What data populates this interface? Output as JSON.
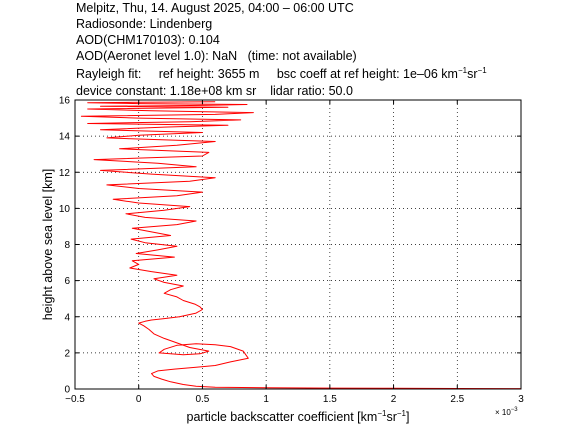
{
  "header": {
    "line1": "Melpitz, Thu, 14. August 2025, 04:00 – 06:00 UTC",
    "line2": "Radiosonde: Lindenberg",
    "line3": "AOD(CHM170103): 0.104",
    "line4_a": "AOD(Aeronet level 1.0): NaN",
    "line4_b": "(time: not available)",
    "rayleigh_label": "Rayleigh fit:",
    "ref_height": "ref height: 3655 m",
    "bsc_coeff_prefix": "bsc coeff at ref height: 1e–06 km",
    "unit_sup1": "−1",
    "unit_mid": "sr",
    "unit_sup2": "−1",
    "device_constant": "device constant: 1.18e+08 km sr",
    "lidar_ratio": "lidar ratio: 50.0"
  },
  "chart_data": {
    "type": "line",
    "title": "",
    "xlabel_main": "particle backscatter coefficient [km",
    "xlabel_sup1": "−1",
    "xlabel_mid": "sr",
    "xlabel_sup2": "−1",
    "xlabel_end": "]",
    "ylabel": "height above sea level [km]",
    "x_multiplier_label": "× 10",
    "x_multiplier_exp": "−3",
    "xlim": [
      -0.5,
      3.0
    ],
    "ylim": [
      0,
      16
    ],
    "xticks": [
      -0.5,
      0,
      0.5,
      1,
      1.5,
      2,
      2.5,
      3
    ],
    "xtick_labels": [
      "−0.5",
      "0",
      "0.5",
      "1",
      "1.5",
      "2",
      "2.5",
      "3"
    ],
    "yticks": [
      0,
      2,
      4,
      6,
      8,
      10,
      12,
      14,
      16
    ],
    "ytick_labels": [
      "0",
      "2",
      "4",
      "6",
      "8",
      "10",
      "12",
      "14",
      "16"
    ],
    "grid": true,
    "line_color": "#ff0000",
    "series": [
      {
        "name": "",
        "x": [
          3.0,
          2.5,
          2.0,
          1.5,
          1.0,
          0.6,
          0.45,
          0.35,
          0.25,
          0.18,
          0.12,
          0.1,
          0.15,
          0.28,
          0.45,
          0.6,
          0.72,
          0.86,
          0.82,
          0.72,
          0.6,
          0.45,
          0.3,
          0.2,
          0.16,
          0.35,
          0.48,
          0.55,
          0.4,
          0.3,
          0.2,
          0.12,
          0.08,
          0.04,
          0.0,
          0.05,
          0.1,
          0.2,
          0.32,
          0.45,
          0.5,
          0.48,
          0.44,
          0.35,
          0.3,
          0.2,
          0.25,
          0.35,
          0.2,
          0.12,
          0.3,
          0.1,
          -0.07,
          0.0,
          -0.05,
          0.28,
          -0.02,
          0.15,
          0.3,
          0.05,
          -0.06,
          0.25,
          0.1,
          -0.05,
          0.3,
          0.45,
          0.05,
          -0.1,
          0.2,
          0.4,
          0.0,
          -0.2,
          0.3,
          0.5,
          0.0,
          -0.25,
          0.4,
          0.6,
          0.1,
          -0.3,
          0.45,
          0.15,
          -0.35,
          0.5,
          0.55,
          -0.15,
          0.3,
          0.6,
          -0.25,
          0.0,
          0.5,
          -0.3,
          0.2,
          0.7,
          -0.4,
          0.4,
          0.8,
          0.0,
          -0.45,
          0.6,
          0.9,
          0.1,
          -0.4,
          0.7,
          -0.3,
          0.5,
          0.85,
          0.0,
          -0.4,
          0.6
        ],
        "y": [
          0.02,
          0.03,
          0.04,
          0.05,
          0.07,
          0.1,
          0.15,
          0.25,
          0.4,
          0.55,
          0.7,
          0.85,
          1.0,
          1.1,
          1.2,
          1.3,
          1.5,
          1.7,
          2.1,
          2.35,
          2.45,
          2.5,
          2.42,
          2.2,
          2.0,
          1.9,
          1.95,
          2.1,
          2.3,
          2.55,
          2.8,
          3.05,
          3.3,
          3.5,
          3.65,
          3.75,
          3.82,
          3.9,
          4.0,
          4.2,
          4.4,
          4.55,
          4.7,
          4.9,
          5.1,
          5.3,
          5.5,
          5.7,
          5.9,
          6.1,
          6.3,
          6.5,
          6.7,
          6.9,
          7.1,
          7.3,
          7.5,
          7.7,
          7.9,
          8.1,
          8.3,
          8.5,
          8.7,
          8.9,
          9.1,
          9.3,
          9.5,
          9.7,
          9.9,
          10.1,
          10.3,
          10.5,
          10.7,
          10.9,
          11.1,
          11.3,
          11.5,
          11.7,
          11.9,
          12.1,
          12.3,
          12.5,
          12.7,
          12.9,
          13.1,
          13.3,
          13.5,
          13.7,
          13.9,
          14.05,
          14.2,
          14.35,
          14.5,
          14.6,
          14.7,
          14.8,
          14.9,
          15.0,
          15.1,
          15.2,
          15.3,
          15.4,
          15.5,
          15.6,
          15.65,
          15.7,
          15.75,
          15.8,
          15.85,
          15.9
        ]
      }
    ]
  }
}
